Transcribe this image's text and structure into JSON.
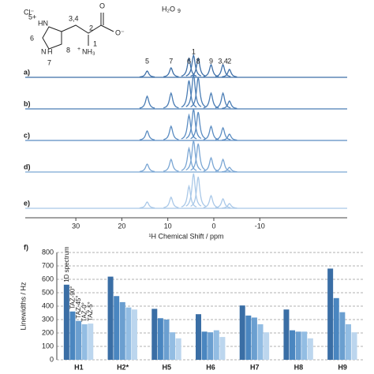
{
  "structure": {
    "counter_ion": "Cl⁻",
    "water": "H₂O",
    "water_label": "9",
    "labels": [
      "5+",
      "HN",
      "6",
      "N",
      "H",
      "7",
      "8",
      "3,4",
      "2",
      "O",
      "O⁻",
      "+",
      "NH₃",
      "1"
    ]
  },
  "chart_data": [
    {
      "type": "spectrum",
      "x_label": "¹H Chemical Shift / ppm",
      "x": [
        14.5,
        9.3,
        5.4,
        4.4,
        3.4,
        0.6,
        -2.0,
        -3.4
      ],
      "peak_labels": [
        "5",
        "7",
        "6",
        "1",
        "8",
        "9",
        "3,4",
        "2"
      ],
      "series": [
        {
          "name": "a)",
          "color": "#3d6fa8",
          "values": [
            4,
            6,
            12,
            14,
            12,
            8,
            8,
            5
          ]
        },
        {
          "name": "b)",
          "color": "#4a7db5",
          "values": [
            8,
            10,
            18,
            22,
            20,
            10,
            10,
            5
          ]
        },
        {
          "name": "c)",
          "color": "#5a8cc2",
          "values": [
            6,
            9,
            16,
            20,
            18,
            9,
            8,
            4
          ]
        },
        {
          "name": "d)",
          "color": "#7aa6d4",
          "values": [
            5,
            8,
            15,
            20,
            18,
            9,
            8,
            3
          ]
        },
        {
          "name": "e)",
          "color": "#a9c8e8",
          "values": [
            4,
            7,
            14,
            22,
            20,
            8,
            6,
            3
          ]
        }
      ],
      "xlim": [
        41,
        -29
      ],
      "xticks": [
        30,
        20,
        10,
        0,
        -10
      ]
    },
    {
      "type": "bar",
      "panel_label": "f)",
      "y_label": "Linewidths / Hz",
      "categories": [
        "H1",
        "H2*",
        "H5",
        "H6",
        "H7",
        "H8",
        "H9"
      ],
      "series": [
        {
          "name": "1D spectrum",
          "color": "#3a6ea5",
          "values": [
            560,
            620,
            380,
            340,
            405,
            375,
            680
          ]
        },
        {
          "name": "TAZ-90°",
          "color": "#4a86c0",
          "values": [
            360,
            475,
            310,
            210,
            330,
            220,
            460
          ]
        },
        {
          "name": "TAZ-45°",
          "color": "#6b9fd0",
          "values": [
            290,
            430,
            300,
            205,
            315,
            210,
            355
          ]
        },
        {
          "name": "TAZ-0°",
          "color": "#93bde3",
          "values": [
            265,
            390,
            205,
            220,
            265,
            210,
            265
          ]
        },
        {
          "name": "TAZ-5°",
          "color": "#bcd6ee",
          "values": [
            270,
            375,
            160,
            170,
            205,
            160,
            205
          ]
        }
      ],
      "ylim": [
        0,
        800
      ],
      "yticks": [
        0,
        100,
        200,
        300,
        400,
        500,
        600,
        700,
        800
      ],
      "grid": true
    }
  ]
}
